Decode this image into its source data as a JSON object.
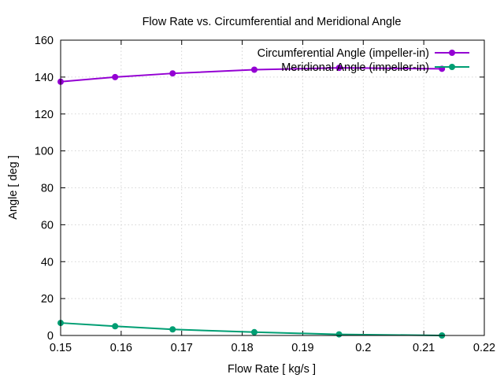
{
  "chart_data": {
    "type": "line",
    "title": "Flow Rate vs. Circumferential and Meridional Angle",
    "xlabel": "Flow Rate [ kg/s ]",
    "ylabel": "Angle [ deg ]",
    "xlim": [
      0.15,
      0.22
    ],
    "ylim": [
      0,
      160
    ],
    "xticks": [
      0.15,
      0.16,
      0.17,
      0.18,
      0.19,
      0.2,
      0.21,
      0.22
    ],
    "xtick_labels": [
      "0.15",
      "0.16",
      "0.17",
      "0.18",
      "0.19",
      "0.2",
      "0.21",
      "0.22"
    ],
    "yticks": [
      0,
      20,
      40,
      60,
      80,
      100,
      120,
      140,
      160
    ],
    "ytick_labels": [
      "0",
      "20",
      "40",
      "60",
      "80",
      "100",
      "120",
      "140",
      "160"
    ],
    "grid": true,
    "legend_position": "top-right",
    "series": [
      {
        "name": "Circumferential Angle (impeller-in)",
        "color": "#9400d3",
        "x": [
          0.15,
          0.159,
          0.1685,
          0.182,
          0.196,
          0.213
        ],
        "y": [
          137.5,
          140.0,
          142.0,
          144.0,
          145.0,
          144.5
        ]
      },
      {
        "name": "Meridional Angle (impeller-in)",
        "color": "#009e73",
        "x": [
          0.15,
          0.159,
          0.1685,
          0.182,
          0.196,
          0.213
        ],
        "y": [
          6.8,
          5.0,
          3.3,
          1.8,
          0.6,
          0.0
        ]
      }
    ]
  }
}
